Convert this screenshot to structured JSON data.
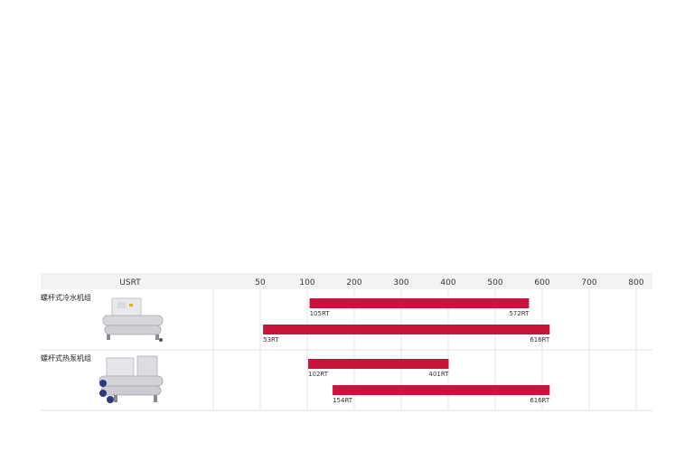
{
  "chart_data": {
    "type": "bar",
    "orientation": "horizontal-range",
    "title": "",
    "unit_label": "USRT",
    "xlim": [
      0,
      800
    ],
    "tick_values": [
      50,
      100,
      200,
      300,
      400,
      500,
      600,
      700,
      800
    ],
    "ticks": [
      "50",
      "100",
      "200",
      "300",
      "400",
      "500",
      "600",
      "700",
      "800"
    ],
    "grid": true,
    "colors": {
      "bar": "#c8143c",
      "header_bg": "#f3f3f3"
    },
    "groups": [
      {
        "label": "螺杆式冷水机组",
        "icon": "screw-chiller-unit-image",
        "ranges": [
          {
            "min": 105,
            "max": 572,
            "min_label": "105RT",
            "max_label": "572RT"
          },
          {
            "min": 53,
            "max": 616,
            "min_label": "53RT",
            "max_label": "616RT"
          }
        ]
      },
      {
        "label": "螺杆式热泵机组",
        "icon": "screw-heat-pump-unit-image",
        "ranges": [
          {
            "min": 102,
            "max": 401,
            "min_label": "102RT",
            "max_label": "401RT"
          },
          {
            "min": 154,
            "max": 616,
            "min_label": "154RT",
            "max_label": "616RT"
          }
        ]
      }
    ]
  }
}
